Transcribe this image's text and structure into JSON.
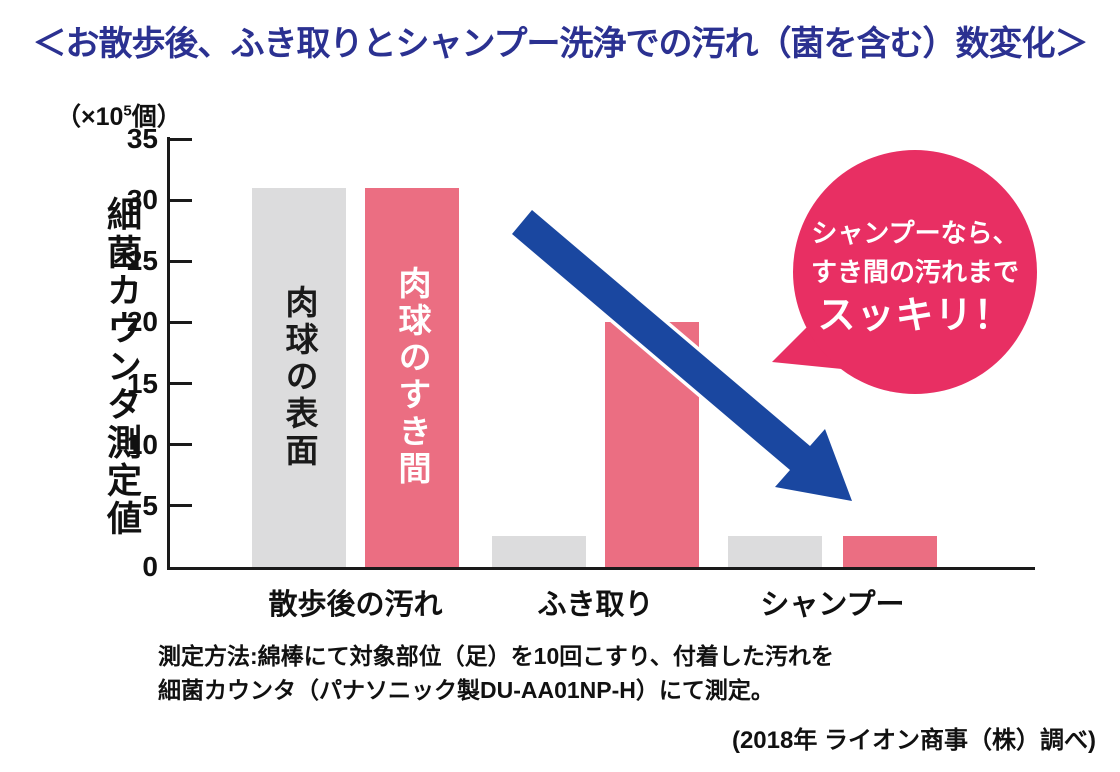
{
  "title": "＜お散歩後、ふき取りとシャンプー洗浄での汚れ（菌を含む）数変化＞",
  "unit": {
    "prefix": "（×10",
    "sup": "5",
    "suffix": "個）"
  },
  "chart_data": {
    "type": "bar",
    "title": "お散歩後、ふき取りとシャンプー洗浄での汚れ（菌を含む）数変化",
    "ylabel": "細菌カウンタ測定値",
    "y_unit": "×10^5 個",
    "ylim": [
      0,
      35
    ],
    "yticks": [
      0,
      5,
      10,
      15,
      20,
      25,
      30,
      35
    ],
    "grid": false,
    "legend": "series-names-printed-inside-first-pair-of-bars",
    "categories": [
      "散歩後の汚れ",
      "ふき取り",
      "シャンプー"
    ],
    "series": [
      {
        "name": "肉球の表面",
        "color": "#dcdcdd",
        "label_text_color": "#1a1a1a",
        "values": [
          31,
          2.5,
          2.5
        ]
      },
      {
        "name": "肉球のすき間",
        "color": "#eb6e82",
        "label_text_color": "#ffffff",
        "values": [
          31,
          20,
          2.5
        ]
      }
    ]
  },
  "balloon": {
    "lines": [
      "シャンプーなら、",
      "すき間の汚れまで",
      "スッキリ！"
    ],
    "color": "#e82f63",
    "text_color": "#ffffff"
  },
  "arrow": {
    "color": "#1a47a0",
    "outline_color": "#ffffff",
    "direction": "down-right"
  },
  "footnote": {
    "line1": "測定方法:綿棒にて対象部位（足）を10回こすり、付着した汚れを",
    "line2": "細菌カウンタ（パナソニック製DU-AA01NP-H）にて測定。"
  },
  "credit": "(2018年 ライオン商事（株）調べ)",
  "colors": {
    "title": "#2b3191",
    "axis": "#1a1a1a",
    "text": "#111111",
    "background": "#ffffff"
  }
}
